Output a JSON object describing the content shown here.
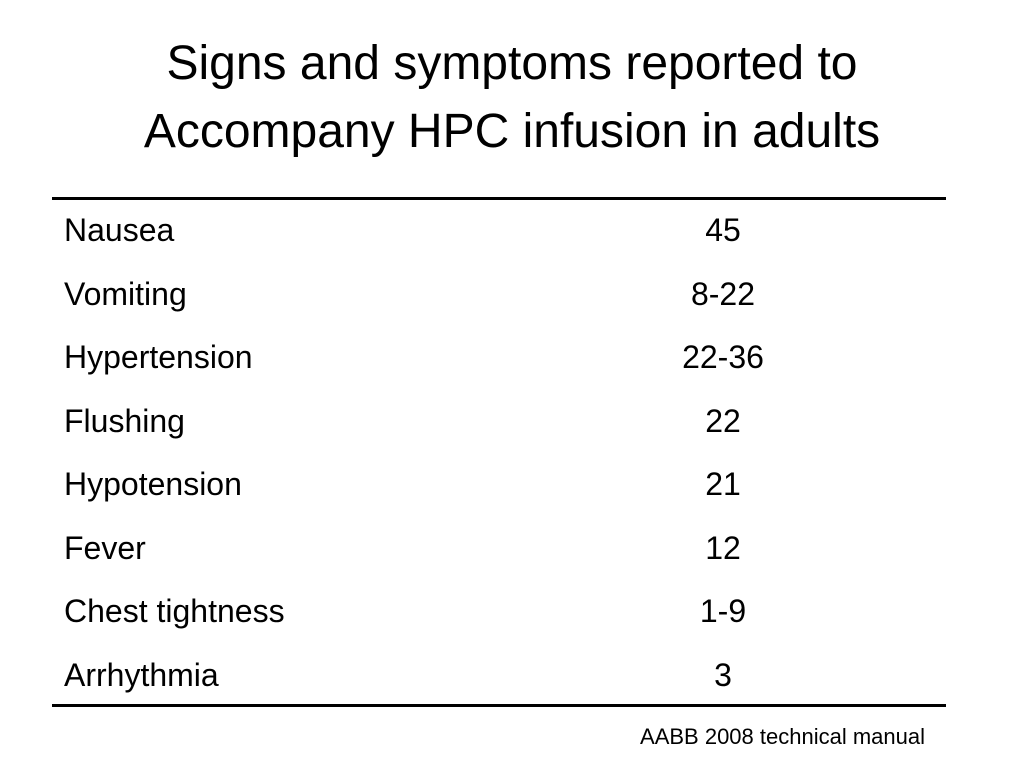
{
  "title": [
    "Signs and symptoms reported to",
    "Accompany HPC infusion in adults"
  ],
  "table": {
    "rows": [
      [
        "Nausea",
        "45"
      ],
      [
        "Vomiting",
        "8-22"
      ],
      [
        "Hypertension",
        "22-36"
      ],
      [
        "Flushing",
        "22"
      ],
      [
        "Hypotension",
        "21"
      ],
      [
        "Fever",
        "12"
      ],
      [
        "Chest tightness",
        "1-9"
      ],
      [
        "Arrhythmia",
        "3"
      ]
    ]
  },
  "footnote": "AABB 2008 technical manual"
}
